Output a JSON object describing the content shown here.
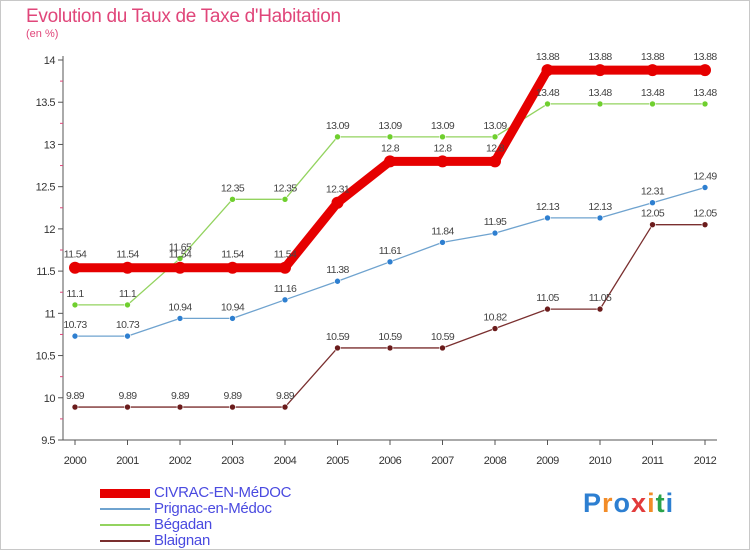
{
  "header": {
    "title": "Evolution du Taux de Taxe d'Habitation",
    "subtitle": "(en %)"
  },
  "brand": {
    "text": "Proxiti",
    "letter_colors": [
      "#2d7fd1",
      "#f28c28",
      "#2d7fd1",
      "#e23b3b",
      "#f28c28",
      "#2aa34a",
      "#2d7fd1"
    ]
  },
  "colors": {
    "title": "#e0467a",
    "axis": "#555555",
    "tick_minor": "#e0467a",
    "legend_text": "#4a4ae0"
  },
  "chart_data": {
    "type": "line",
    "title": "Evolution du Taux de Taxe d'Habitation",
    "subtitle": "(en %)",
    "xlabel": "",
    "ylabel": "",
    "x": [
      "2000",
      "2001",
      "2002",
      "2003",
      "2004",
      "2005",
      "2006",
      "2007",
      "2008",
      "2009",
      "2010",
      "2011",
      "2012"
    ],
    "ylim": [
      9.5,
      14
    ],
    "yticks": [
      "9.5",
      "10",
      "10.5",
      "11",
      "11.5",
      "12",
      "12.5",
      "13",
      "13.5",
      "14"
    ],
    "grid": false,
    "legend_position": "bottom-left",
    "series": [
      {
        "name": "CIVRAC-EN-MéDOC",
        "color": "#e60000",
        "emphasis": true,
        "values": [
          11.54,
          11.54,
          11.54,
          11.54,
          11.54,
          12.31,
          12.8,
          12.8,
          12.8,
          13.88,
          13.88,
          13.88,
          13.88
        ],
        "labels": [
          "11.54",
          "11.54",
          "11.54",
          "11.54",
          "11.54",
          "12.31",
          "12.8",
          "12.8",
          "12.8",
          "13.88",
          "13.88",
          "13.88",
          "13.88"
        ]
      },
      {
        "name": "Prignac-en-Médoc",
        "color": "#6fa3cf",
        "point_color": "#2e7fd0",
        "values": [
          10.73,
          10.73,
          10.94,
          10.94,
          11.16,
          11.38,
          11.61,
          11.84,
          11.95,
          12.13,
          12.13,
          12.31,
          12.49
        ],
        "labels": [
          "10.73",
          "10.73",
          "10.94",
          "10.94",
          "11.16",
          "11.38",
          "11.61",
          "11.84",
          "11.95",
          "12.13",
          "12.13",
          "12.31",
          "12.49"
        ]
      },
      {
        "name": "Bégadan",
        "color": "#93d35f",
        "point_color": "#6fcf2e",
        "values": [
          11.1,
          11.1,
          11.65,
          12.35,
          12.35,
          13.09,
          13.09,
          13.09,
          13.09,
          13.48,
          13.48,
          13.48,
          13.48
        ],
        "labels": [
          "11.1",
          "11.1",
          "11.65",
          "12.35",
          "12.35",
          "13.09",
          "13.09",
          "13.09",
          "13.09",
          "13.48",
          "13.48",
          "13.48",
          "13.48"
        ]
      },
      {
        "name": "Blaignan",
        "color": "#7a2f2f",
        "point_color": "#6b1c1c",
        "values": [
          9.89,
          9.89,
          9.89,
          9.89,
          9.89,
          10.59,
          10.59,
          10.59,
          10.82,
          11.05,
          11.05,
          12.05,
          12.05
        ],
        "labels": [
          "9.89",
          "9.89",
          "9.89",
          "9.89",
          "9.89",
          "10.59",
          "10.59",
          "10.59",
          "10.82",
          "11.05",
          "11.05",
          "12.05",
          "12.05"
        ]
      }
    ]
  }
}
